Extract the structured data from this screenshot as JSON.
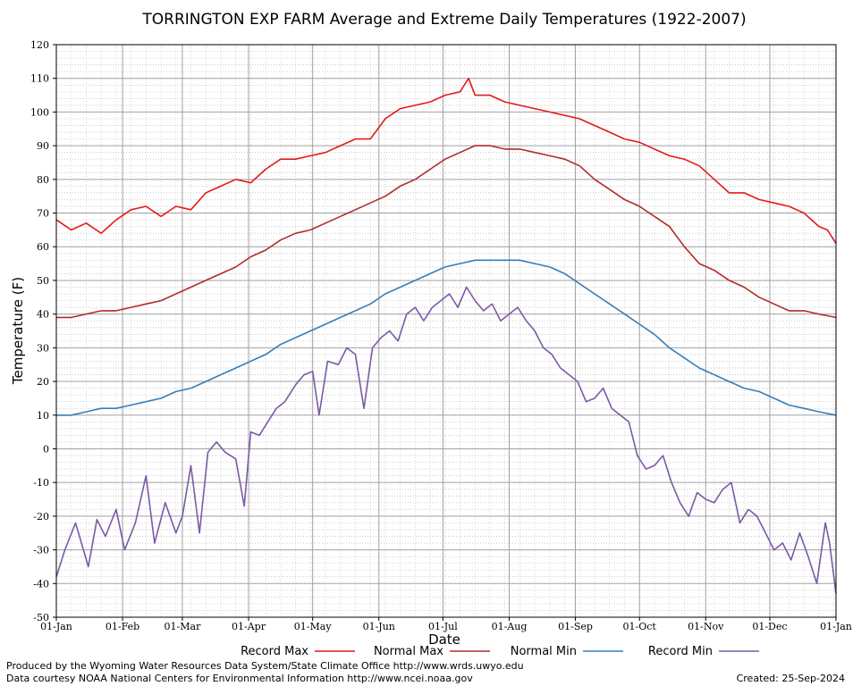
{
  "chart_data": {
    "type": "line",
    "title": "TORRINGTON EXP FARM Average and Extreme Daily Temperatures (1922-2007)",
    "xlabel": "Date",
    "ylabel": "Temperature (F)",
    "ylim": [
      -50,
      120
    ],
    "yticks": [
      -50,
      -40,
      -30,
      -20,
      -10,
      0,
      10,
      20,
      30,
      40,
      50,
      60,
      70,
      80,
      90,
      100,
      110,
      120
    ],
    "x_tick_labels": [
      "01-Jan",
      "01-Feb",
      "01-Mar",
      "01-Apr",
      "01-May",
      "01-Jun",
      "01-Jul",
      "01-Aug",
      "01-Sep",
      "01-Oct",
      "01-Nov",
      "01-Dec",
      "01-Jan"
    ],
    "x_tick_days": [
      1,
      32,
      60,
      91,
      121,
      152,
      182,
      213,
      244,
      274,
      305,
      335,
      366
    ],
    "grid": true,
    "legend_position": "bottom",
    "series": [
      {
        "name": "Record Max",
        "color": "#e41a1c",
        "x": [
          1,
          8,
          15,
          22,
          29,
          36,
          43,
          50,
          57,
          64,
          71,
          78,
          85,
          92,
          99,
          106,
          113,
          120,
          127,
          134,
          141,
          148,
          155,
          162,
          169,
          176,
          183,
          190,
          194,
          197,
          204,
          211,
          218,
          225,
          232,
          239,
          246,
          253,
          260,
          267,
          274,
          281,
          288,
          295,
          302,
          309,
          316,
          323,
          330,
          337,
          344,
          351,
          358,
          362,
          366
        ],
        "y": [
          68,
          65,
          67,
          64,
          68,
          71,
          72,
          69,
          72,
          71,
          76,
          78,
          80,
          79,
          83,
          86,
          86,
          87,
          88,
          90,
          92,
          92,
          98,
          101,
          102,
          103,
          105,
          106,
          110,
          105,
          105,
          103,
          102,
          101,
          100,
          99,
          98,
          96,
          94,
          92,
          91,
          89,
          87,
          86,
          84,
          80,
          76,
          76,
          74,
          73,
          72,
          70,
          66,
          65,
          61
        ]
      },
      {
        "name": "Normal Max",
        "color": "#b22b2b",
        "x": [
          1,
          8,
          15,
          22,
          29,
          36,
          43,
          50,
          57,
          64,
          71,
          78,
          85,
          92,
          99,
          106,
          113,
          120,
          127,
          134,
          141,
          148,
          155,
          162,
          169,
          176,
          183,
          190,
          197,
          204,
          211,
          218,
          225,
          232,
          239,
          246,
          253,
          260,
          267,
          274,
          281,
          288,
          295,
          302,
          309,
          316,
          323,
          330,
          337,
          344,
          351,
          358,
          366
        ],
        "y": [
          39,
          39,
          40,
          41,
          41,
          42,
          43,
          44,
          46,
          48,
          50,
          52,
          54,
          57,
          59,
          62,
          64,
          65,
          67,
          69,
          71,
          73,
          75,
          78,
          80,
          83,
          86,
          88,
          90,
          90,
          89,
          89,
          88,
          87,
          86,
          84,
          80,
          77,
          74,
          72,
          69,
          66,
          60,
          55,
          53,
          50,
          48,
          45,
          43,
          41,
          41,
          40,
          39
        ]
      },
      {
        "name": "Normal Min",
        "color": "#377eb8",
        "x": [
          1,
          8,
          15,
          22,
          29,
          36,
          43,
          50,
          57,
          64,
          71,
          78,
          85,
          92,
          99,
          106,
          113,
          120,
          127,
          134,
          141,
          148,
          155,
          162,
          169,
          176,
          183,
          190,
          197,
          204,
          211,
          218,
          225,
          232,
          239,
          246,
          253,
          260,
          267,
          274,
          281,
          288,
          295,
          302,
          309,
          316,
          323,
          330,
          337,
          344,
          351,
          358,
          366
        ],
        "y": [
          10,
          10,
          11,
          12,
          12,
          13,
          14,
          15,
          17,
          18,
          20,
          22,
          24,
          26,
          28,
          31,
          33,
          35,
          37,
          39,
          41,
          43,
          46,
          48,
          50,
          52,
          54,
          55,
          56,
          56,
          56,
          56,
          55,
          54,
          52,
          49,
          46,
          43,
          40,
          37,
          34,
          30,
          27,
          24,
          22,
          20,
          18,
          17,
          15,
          13,
          12,
          11,
          10
        ]
      },
      {
        "name": "Record Min",
        "color": "#7b5aa6",
        "x": [
          1,
          5,
          10,
          16,
          20,
          24,
          29,
          33,
          38,
          43,
          47,
          52,
          57,
          60,
          64,
          68,
          72,
          76,
          80,
          85,
          89,
          92,
          96,
          100,
          104,
          108,
          113,
          117,
          121,
          124,
          128,
          133,
          137,
          141,
          145,
          149,
          153,
          157,
          161,
          165,
          169,
          173,
          177,
          181,
          185,
          189,
          193,
          197,
          201,
          205,
          209,
          213,
          217,
          221,
          225,
          229,
          233,
          237,
          241,
          245,
          249,
          253,
          257,
          261,
          265,
          269,
          273,
          277,
          281,
          285,
          289,
          293,
          297,
          301,
          305,
          309,
          313,
          317,
          321,
          325,
          329,
          333,
          337,
          341,
          345,
          349,
          353,
          357,
          361,
          363,
          366
        ],
        "y": [
          -38,
          -30,
          -22,
          -35,
          -21,
          -26,
          -18,
          -30,
          -22,
          -8,
          -28,
          -16,
          -25,
          -20,
          -5,
          -25,
          -1,
          2,
          -1,
          -3,
          -17,
          5,
          4,
          8,
          12,
          14,
          19,
          22,
          23,
          10,
          26,
          25,
          30,
          28,
          12,
          30,
          33,
          35,
          32,
          40,
          42,
          38,
          42,
          44,
          46,
          42,
          48,
          44,
          41,
          43,
          38,
          40,
          42,
          38,
          35,
          30,
          28,
          24,
          22,
          20,
          14,
          15,
          18,
          12,
          10,
          8,
          -2,
          -6,
          -5,
          -2,
          -10,
          -16,
          -20,
          -13,
          -15,
          -16,
          -12,
          -10,
          -22,
          -18,
          -20,
          -25,
          -30,
          -28,
          -33,
          -25,
          -32,
          -40,
          -22,
          -28,
          -43
        ]
      }
    ]
  },
  "footer": {
    "line1": "Produced by the Wyoming Water Resources Data System/State Climate Office http://www.wrds.uwyo.edu",
    "line2": "Data courtesy NOAA National Centers for Environmental Information http://www.ncei.noaa.gov",
    "created": "Created:  25-Sep-2024"
  }
}
